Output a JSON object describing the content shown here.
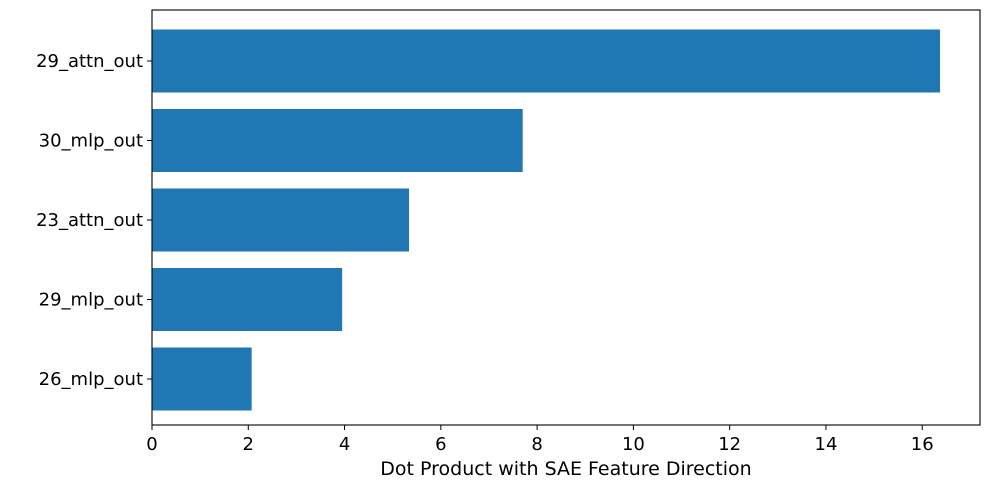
{
  "chart_data": {
    "type": "bar",
    "orientation": "horizontal",
    "categories": [
      "29_attn_out",
      "30_mlp_out",
      "23_attn_out",
      "29_mlp_out",
      "26_mlp_out"
    ],
    "values": [
      16.37,
      7.7,
      5.34,
      3.95,
      2.07
    ],
    "xlabel": "Dot Product with SAE Feature Direction",
    "ylabel": "",
    "xlim": [
      0,
      17.2
    ],
    "xticks": [
      "0",
      "2",
      "4",
      "6",
      "8",
      "10",
      "12",
      "14",
      "16"
    ],
    "grid": false,
    "bar_color": "#1f77b4"
  }
}
